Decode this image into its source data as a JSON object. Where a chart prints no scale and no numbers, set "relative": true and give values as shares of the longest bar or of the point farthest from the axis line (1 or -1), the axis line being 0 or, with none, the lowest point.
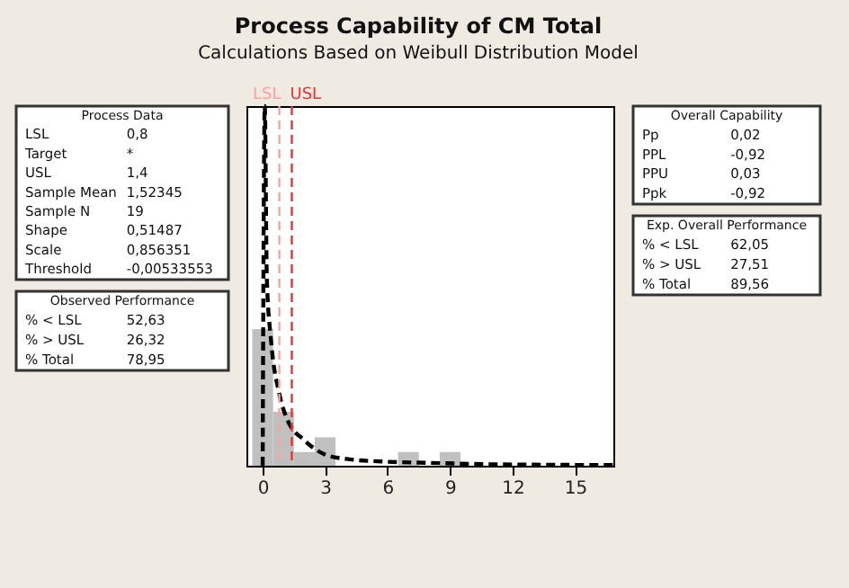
{
  "chart_data": [
    {
      "type": "histogram",
      "title": "Process Capability of CM Total",
      "subtitle": "Calculations Based on Weibull Distribution Model",
      "bins": [
        -0.5,
        0.5,
        1.5,
        2.5,
        3.5,
        4.5,
        5.5,
        6.5,
        7.5,
        8.5,
        9.5
      ],
      "xlim": [
        -0.78,
        16.84
      ],
      "xticks": [
        0,
        3,
        6,
        9,
        12,
        15
      ],
      "relative": true,
      "grid": false,
      "series": [
        {
          "type": "histogram",
          "color": "#c0c0c0",
          "values": [
            0.38,
            0.15,
            0.038,
            0.079,
            0,
            0,
            0,
            0.038,
            0,
            0.038
          ]
        },
        {
          "type": "line",
          "color": "#000000",
          "line_style": "dashed",
          "x": [
            0,
            0.1,
            0.2,
            0.4,
            0.8,
            1.2,
            2,
            3,
            4,
            6,
            8,
            10,
            13,
            16.84
          ],
          "values": [
            0,
            1,
            0.52,
            0.35,
            0.2,
            0.126,
            0.071,
            0.031,
            0.019,
            0.011,
            0.008,
            0.005,
            0.003,
            0.002
          ]
        }
      ],
      "ref_lines": [
        {
          "axis": "x",
          "value": 0.8,
          "label": "LSL",
          "color": "#ffa0a0",
          "line_style": "dashed"
        },
        {
          "axis": "x",
          "value": 1.4,
          "label": "USL",
          "color": "#f03030",
          "line_style": "dashed"
        }
      ]
    },
    {
      "type": "other",
      "title": "Process Data",
      "categories": [
        "LSL",
        "Target",
        "USL",
        "Sample Mean",
        "Sample N",
        "Shape",
        "Scale",
        "Threshold"
      ],
      "value_labels": [
        "0,8",
        "*",
        "1,4",
        "1,52345",
        "19",
        "0,51487",
        "0,856351",
        "-0,00533553"
      ]
    },
    {
      "type": "other",
      "title": "Observed Performance",
      "categories": [
        "% < LSL",
        "% > USL",
        "% Total"
      ],
      "value_labels": [
        "52,63",
        "26,32",
        "78,95"
      ]
    },
    {
      "type": "other",
      "title": "Overall Capability",
      "categories": [
        "Pp",
        "PPL",
        "PPU",
        "Ppk"
      ],
      "value_labels": [
        "0,02",
        "-0,92",
        "0,03",
        "-0,92"
      ]
    },
    {
      "type": "other",
      "title": "Exp. Overall Performance",
      "categories": [
        "% < LSL",
        "% > USL",
        "% Total"
      ],
      "value_labels": [
        "62,05",
        "27,51",
        "89,56"
      ]
    }
  ]
}
